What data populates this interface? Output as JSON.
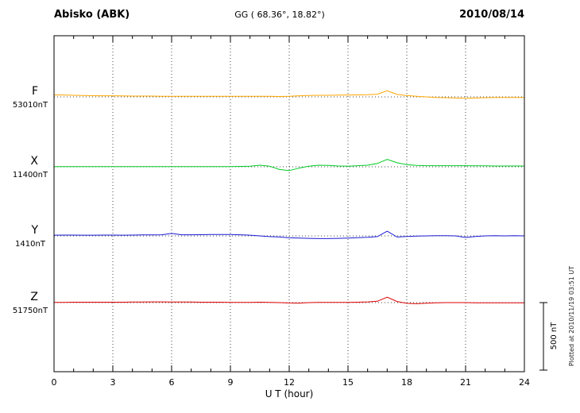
{
  "chart_data": {
    "type": "line",
    "title": "Abisko (ABK)",
    "coords_label": "GG ( 68.36°,  18.82°)",
    "date": "2010/08/14",
    "xlabel": "U T (hour)",
    "x_range": [
      0,
      24
    ],
    "x_ticks": [
      0,
      3,
      6,
      9,
      12,
      15,
      18,
      21,
      24
    ],
    "x_step_hours": 0.5,
    "grid": "dotted-vertical-every-3h",
    "legend_position": "left-of-traces",
    "scale_bar": {
      "label": "500 nT",
      "nT": 500
    },
    "plotted_at": "Plotted at 2010/11/19 03:51 UT",
    "series": [
      {
        "name": "F",
        "baseline_label": "53010nT",
        "color": "#FFA500",
        "units": "nT offset from baseline",
        "values": [
          15,
          14,
          12,
          10,
          9,
          8,
          8,
          7,
          6,
          6,
          6,
          5,
          5,
          5,
          4,
          4,
          4,
          4,
          4,
          4,
          5,
          5,
          4,
          3,
          5,
          8,
          10,
          12,
          12,
          13,
          14,
          15,
          16,
          20,
          45,
          18,
          10,
          5,
          0,
          -4,
          -6,
          -8,
          -10,
          -8,
          -6,
          -5,
          -4,
          -4,
          -5
        ]
      },
      {
        "name": "X",
        "baseline_label": "11400nT",
        "color": "#00CC22",
        "units": "nT offset from baseline",
        "values": [
          2,
          2,
          1,
          2,
          2,
          1,
          1,
          2,
          2,
          1,
          2,
          2,
          1,
          1,
          2,
          2,
          1,
          2,
          2,
          3,
          5,
          12,
          5,
          -20,
          -28,
          -10,
          5,
          12,
          10,
          6,
          5,
          8,
          12,
          25,
          55,
          30,
          15,
          10,
          8,
          8,
          8,
          8,
          8,
          7,
          7,
          6,
          6,
          6,
          6
        ]
      },
      {
        "name": "Y",
        "baseline_label": "1410nT",
        "color": "#1A1AD6",
        "units": "nT offset from baseline",
        "values": [
          5,
          6,
          6,
          5,
          5,
          6,
          6,
          5,
          6,
          7,
          7,
          8,
          18,
          8,
          8,
          9,
          10,
          10,
          10,
          8,
          5,
          0,
          -5,
          -8,
          -14,
          -16,
          -18,
          -20,
          -20,
          -18,
          -16,
          -13,
          -10,
          -5,
          35,
          -8,
          -4,
          -2,
          0,
          1,
          1,
          0,
          -12,
          -4,
          0,
          1,
          0,
          1,
          0
        ]
      },
      {
        "name": "Z",
        "baseline_label": "51750nT",
        "color": "#DD0000",
        "units": "nT offset from baseline",
        "values": [
          2,
          2,
          3,
          3,
          3,
          3,
          3,
          3,
          4,
          4,
          5,
          5,
          4,
          4,
          4,
          3,
          3,
          3,
          2,
          2,
          2,
          3,
          2,
          0,
          -3,
          -4,
          0,
          2,
          2,
          2,
          2,
          3,
          5,
          10,
          40,
          8,
          -5,
          -8,
          -4,
          -2,
          0,
          0,
          0,
          -2,
          -2,
          -1,
          -1,
          -1,
          -1
        ]
      }
    ]
  }
}
